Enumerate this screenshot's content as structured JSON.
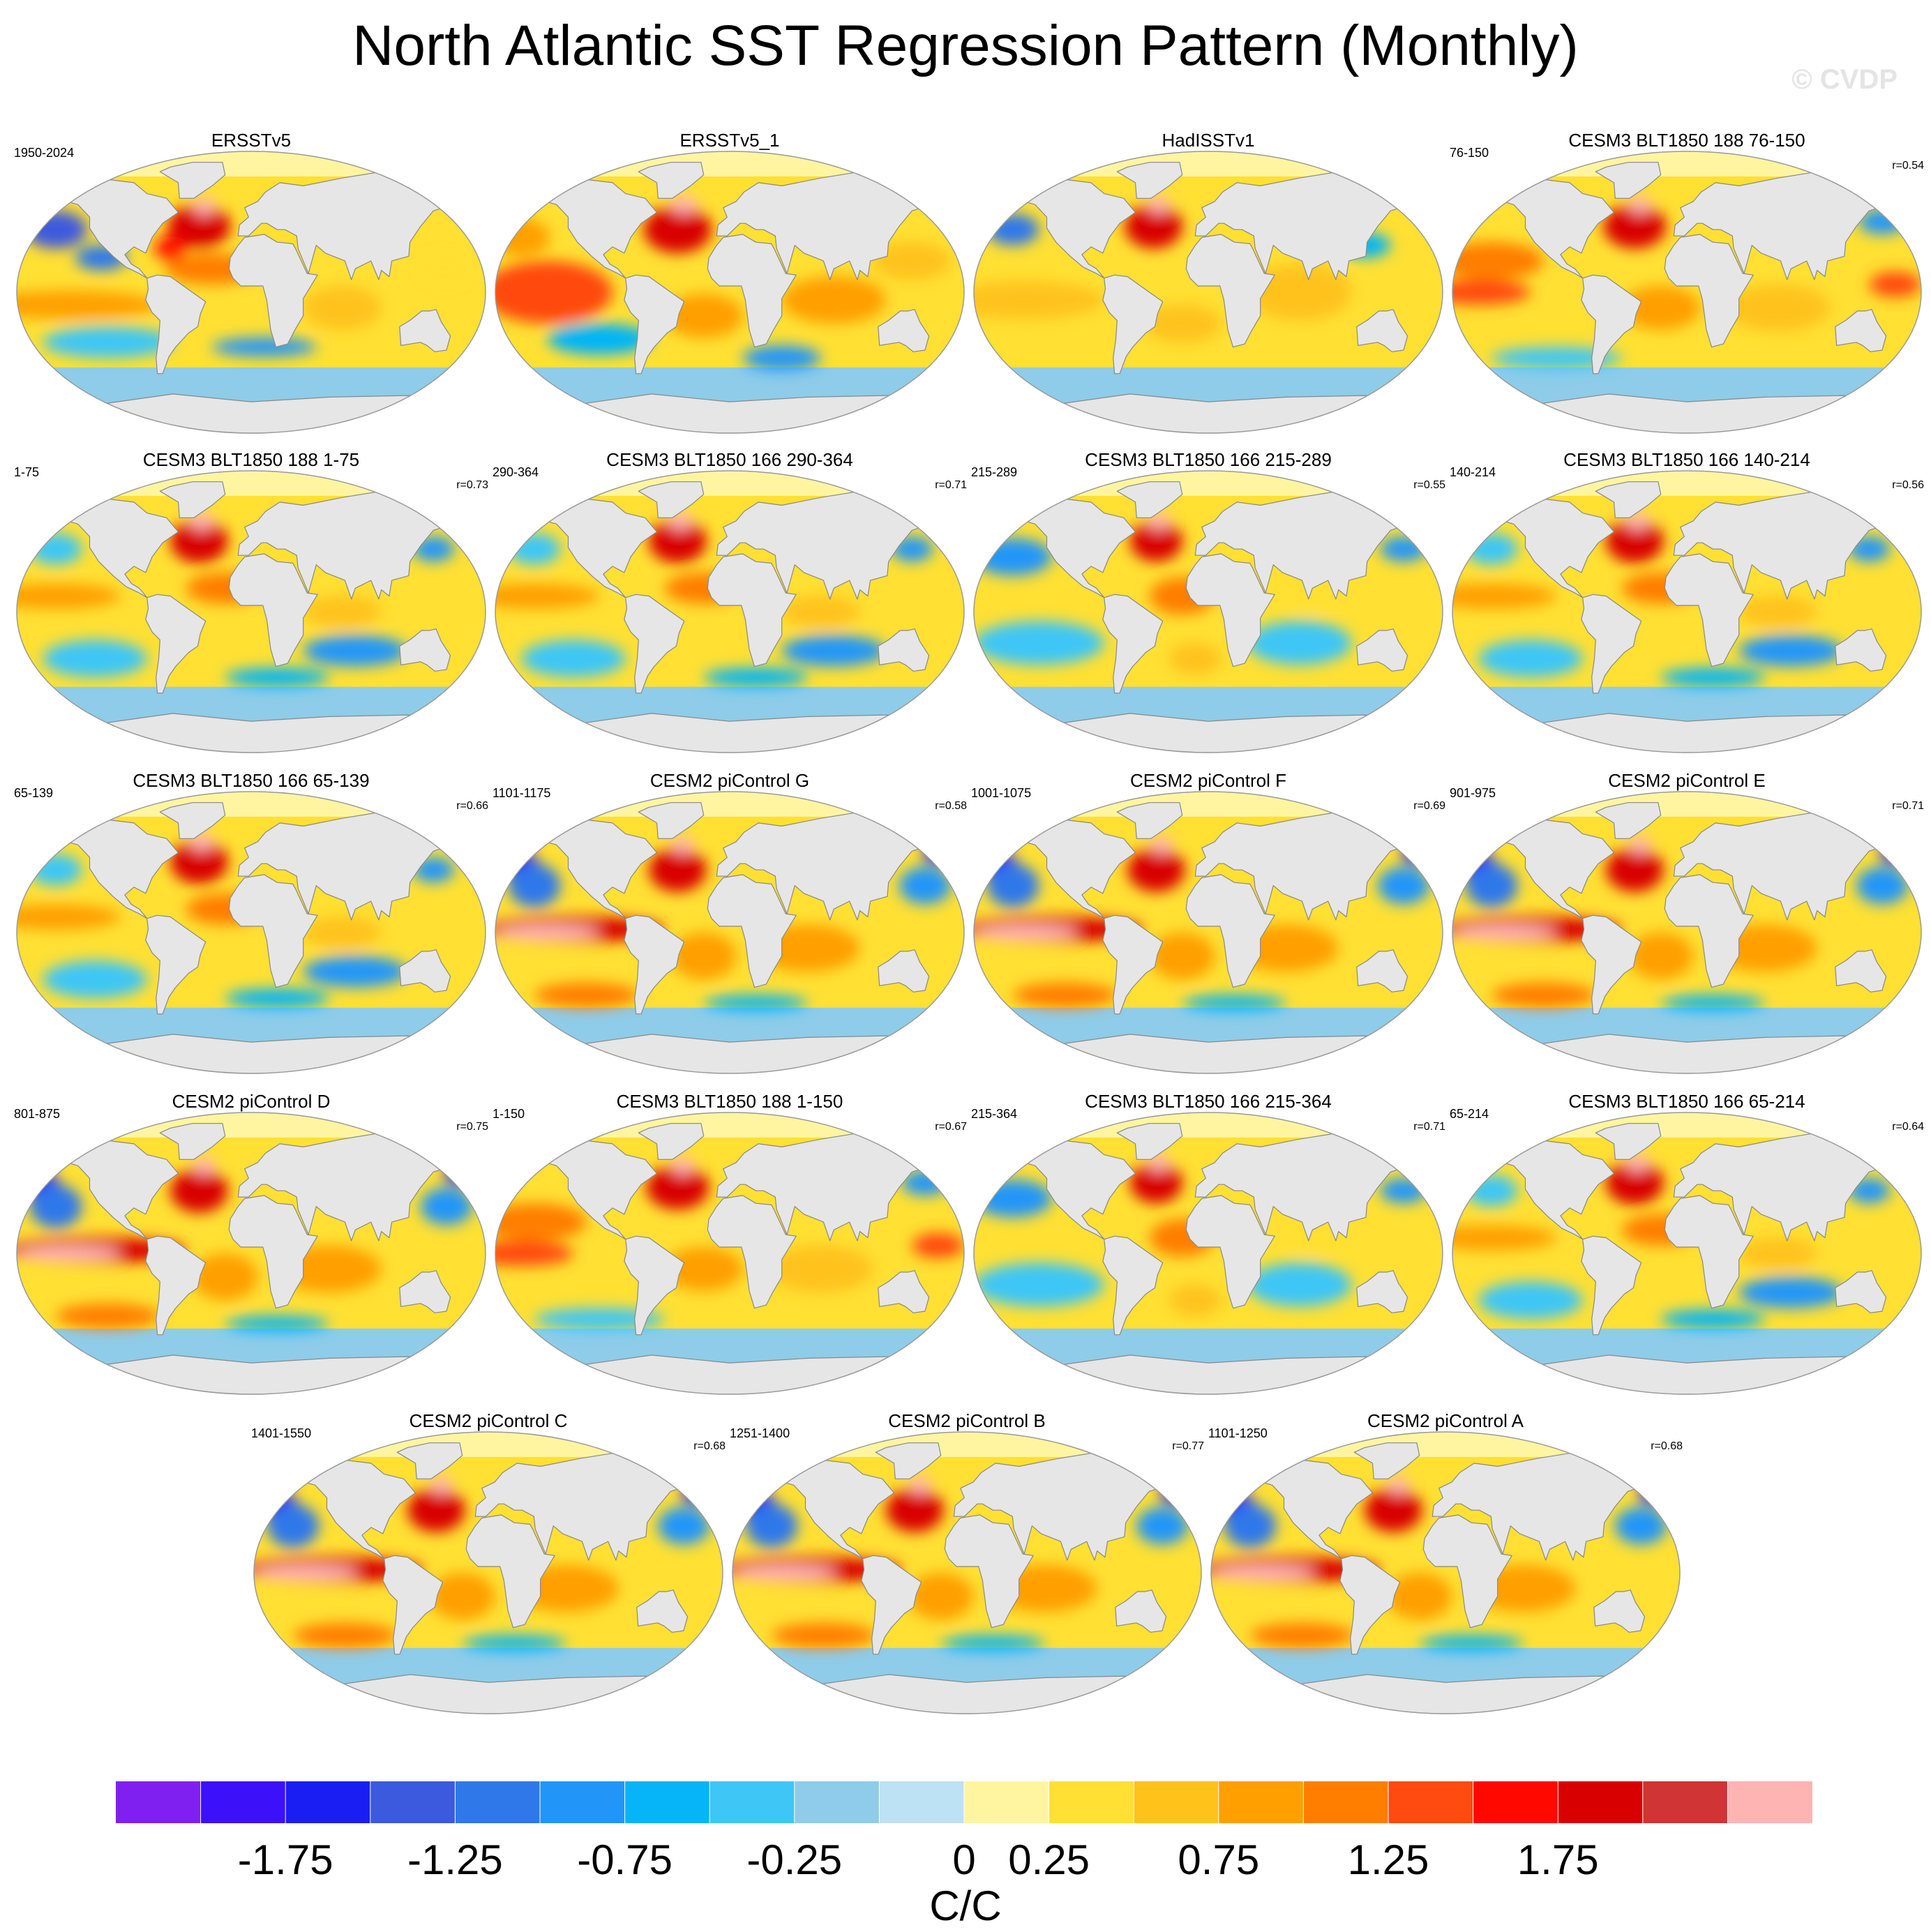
{
  "title": "North Atlantic SST Regression Pattern (Monthly)",
  "watermark": "© CVDP",
  "panels": [
    {
      "title": "ERSSTv5",
      "period": "1950-2024",
      "corr": "",
      "style": "obs1"
    },
    {
      "title": "ERSSTv5_1",
      "period": "",
      "corr": "",
      "style": "obs2"
    },
    {
      "title": "HadISSTv1",
      "period": "",
      "corr": "",
      "style": "obs3"
    },
    {
      "title": "CESM3 BLT1850 188 76-150",
      "period": "76-150",
      "corr": "r=0.54",
      "style": "warm"
    },
    {
      "title": "CESM3 BLT1850 188 1-75",
      "period": "1-75",
      "corr": "r=0.73",
      "style": "mixed"
    },
    {
      "title": "CESM3 BLT1850 166 290-364",
      "period": "290-364",
      "corr": "r=0.71",
      "style": "mixed"
    },
    {
      "title": "CESM3 BLT1850 166 215-289",
      "period": "215-289",
      "corr": "r=0.55",
      "style": "cool"
    },
    {
      "title": "CESM3 BLT1850 166 140-214",
      "period": "140-214",
      "corr": "r=0.56",
      "style": "mixed"
    },
    {
      "title": "CESM3 BLT1850 166 65-139",
      "period": "65-139",
      "corr": "r=0.66",
      "style": "mixed"
    },
    {
      "title": "CESM2 piControl G",
      "period": "1101-1175",
      "corr": "r=0.58",
      "style": "enso"
    },
    {
      "title": "CESM2 piControl F",
      "period": "1001-1075",
      "corr": "r=0.69",
      "style": "enso"
    },
    {
      "title": "CESM2 piControl E",
      "period": "901-975",
      "corr": "r=0.71",
      "style": "enso"
    },
    {
      "title": "CESM2 piControl D",
      "period": "801-875",
      "corr": "r=0.75",
      "style": "enso"
    },
    {
      "title": "CESM3 BLT1850 188 1-150",
      "period": "1-150",
      "corr": "r=0.67",
      "style": "warm"
    },
    {
      "title": "CESM3 BLT1850 166 215-364",
      "period": "215-364",
      "corr": "r=0.71",
      "style": "cool"
    },
    {
      "title": "CESM3 BLT1850 166 65-214",
      "period": "65-214",
      "corr": "r=0.64",
      "style": "mixed"
    },
    {
      "title": "CESM2 piControl C",
      "period": "1401-1550",
      "corr": "r=0.68",
      "style": "enso"
    },
    {
      "title": "CESM2 piControl B",
      "period": "1251-1400",
      "corr": "r=0.77",
      "style": "enso"
    },
    {
      "title": "CESM2 piControl A",
      "period": "1101-1250",
      "corr": "r=0.68",
      "style": "enso"
    }
  ],
  "colorbar": {
    "colors": [
      "#8020f0",
      "#3c10f8",
      "#1a1ef2",
      "#3c5ade",
      "#2e78ea",
      "#2196f8",
      "#06b4f8",
      "#3ec6f6",
      "#8ecce9",
      "#bde2f3",
      "#fff5a0",
      "#ffe033",
      "#ffc21a",
      "#ff9f00",
      "#ff7e00",
      "#ff4a10",
      "#ff0800",
      "#d80000",
      "#d03434",
      "#ffb4b4"
    ],
    "labels": [
      "-1.75",
      "-1.25",
      "-0.75",
      "-0.25",
      "0",
      "0.25",
      "0.75",
      "1.25",
      "1.75"
    ],
    "units": "C/C"
  }
}
